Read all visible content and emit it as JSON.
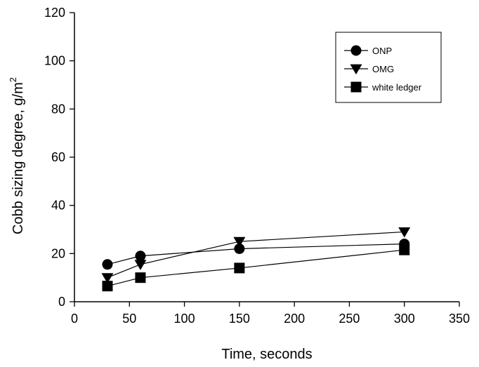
{
  "chart_data": {
    "type": "line",
    "xlabel": "Time, seconds",
    "ylabel_main": "Cobb sizing degree, g/m",
    "ylabel_sup": "2",
    "xlim": [
      0,
      350
    ],
    "ylim": [
      0,
      120
    ],
    "xticks": [
      "0",
      "50",
      "100",
      "150",
      "200",
      "250",
      "300",
      "350"
    ],
    "yticks": [
      "0",
      "20",
      "40",
      "60",
      "80",
      "100",
      "120"
    ],
    "grid": false,
    "legend_position": "top-right",
    "series": [
      {
        "name": "ONP",
        "marker": "circle",
        "x": [
          30,
          60,
          150,
          300
        ],
        "y": [
          15.5,
          19,
          22,
          24
        ]
      },
      {
        "name": "OMG",
        "marker": "triangle-down",
        "x": [
          30,
          60,
          150,
          300
        ],
        "y": [
          10,
          15.5,
          25,
          29
        ]
      },
      {
        "name": "white ledger",
        "marker": "square",
        "x": [
          30,
          60,
          150,
          300
        ],
        "y": [
          6.5,
          10,
          14,
          21.5
        ]
      }
    ]
  }
}
